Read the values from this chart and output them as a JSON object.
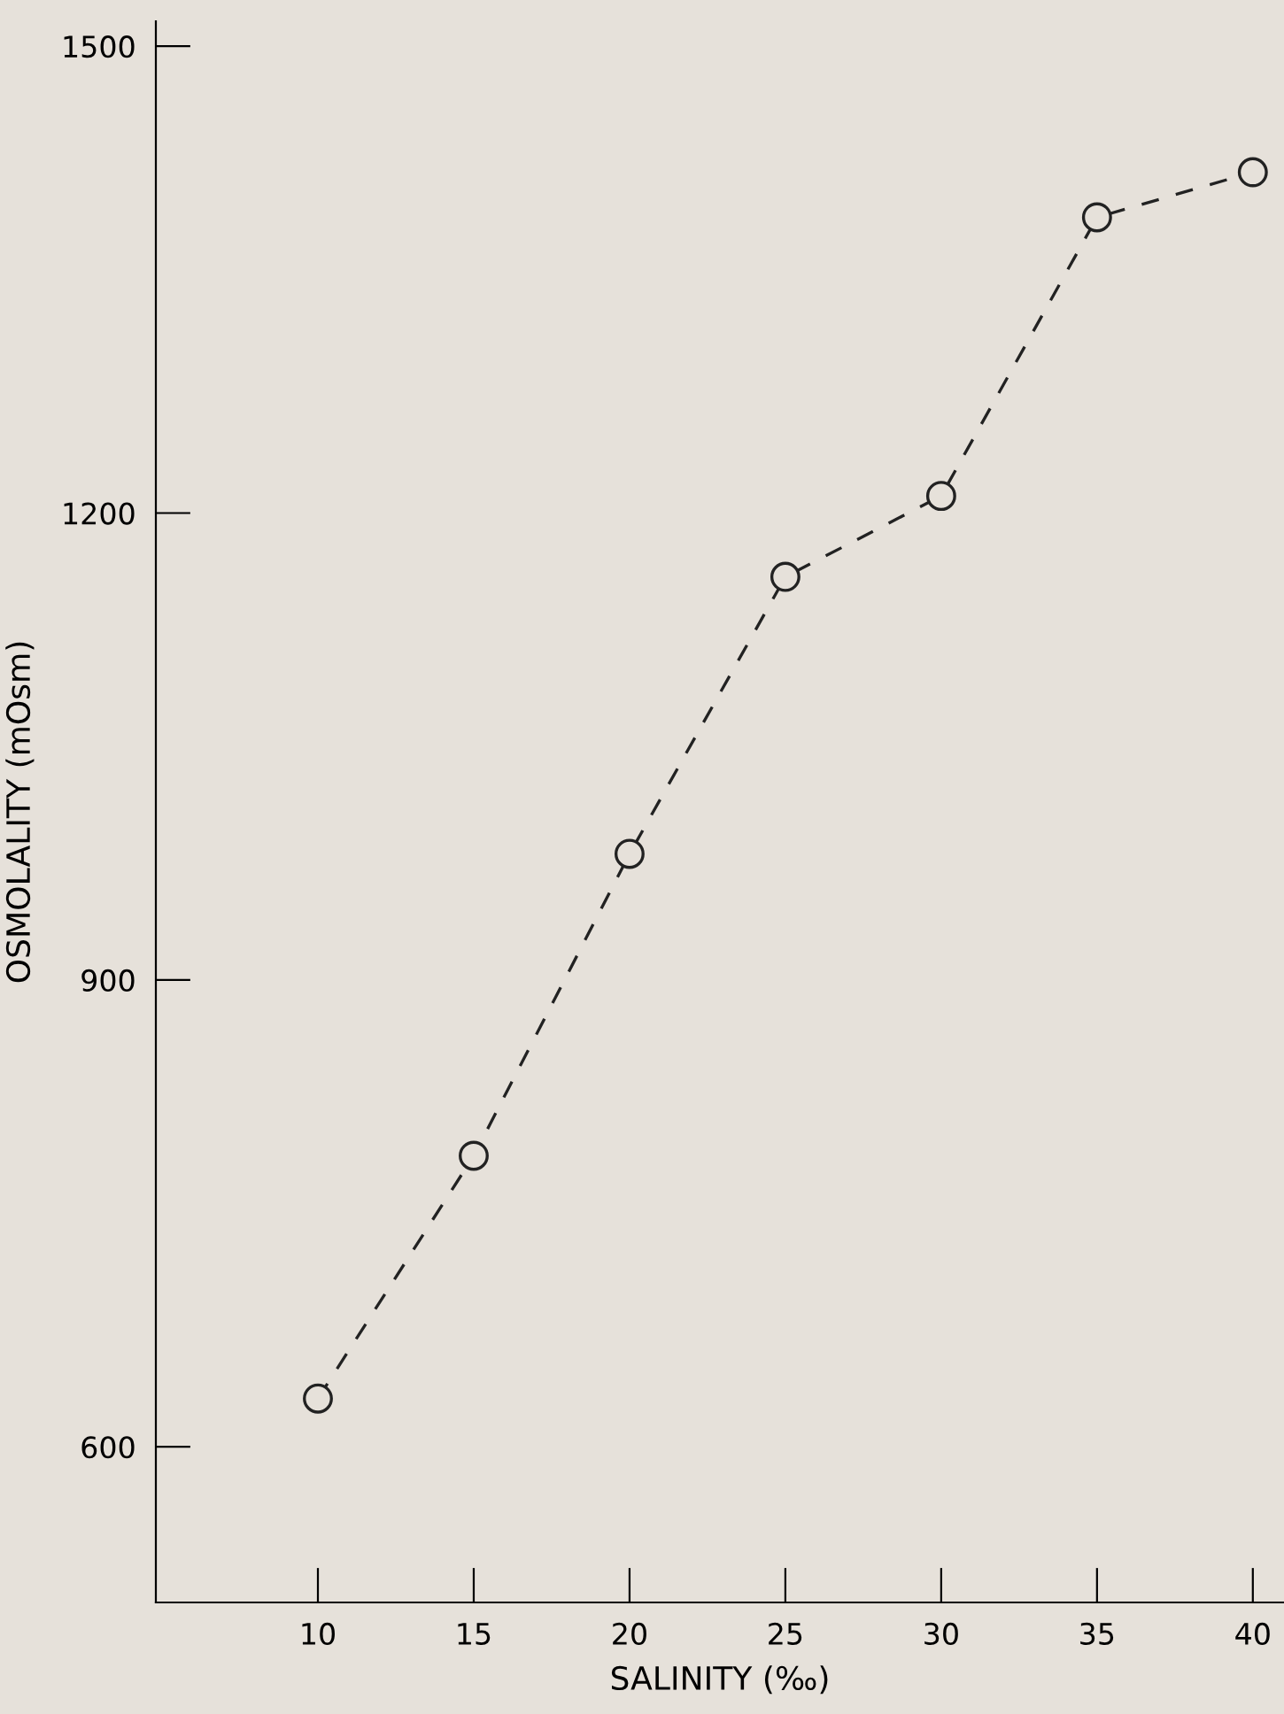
{
  "chart_data": {
    "type": "line",
    "xlabel": "SALINITY (‰)",
    "ylabel": "OSMOLALITY (mOsm)",
    "x": [
      10,
      15,
      20,
      25,
      30,
      35,
      40
    ],
    "series": [
      {
        "color": "#222222",
        "values": [
          631,
          787,
          981,
          1159,
          1211,
          1390,
          1419
        ]
      }
    ],
    "xlim": [
      4.8,
      41
    ],
    "ylim": [
      500,
      1516
    ],
    "xticks": [
      10,
      15,
      20,
      25,
      30,
      35,
      40
    ],
    "yticks": [
      600,
      900,
      1200,
      1500
    ],
    "marker": "circle",
    "line_style": "dashed",
    "grid": false,
    "legend": false
  }
}
